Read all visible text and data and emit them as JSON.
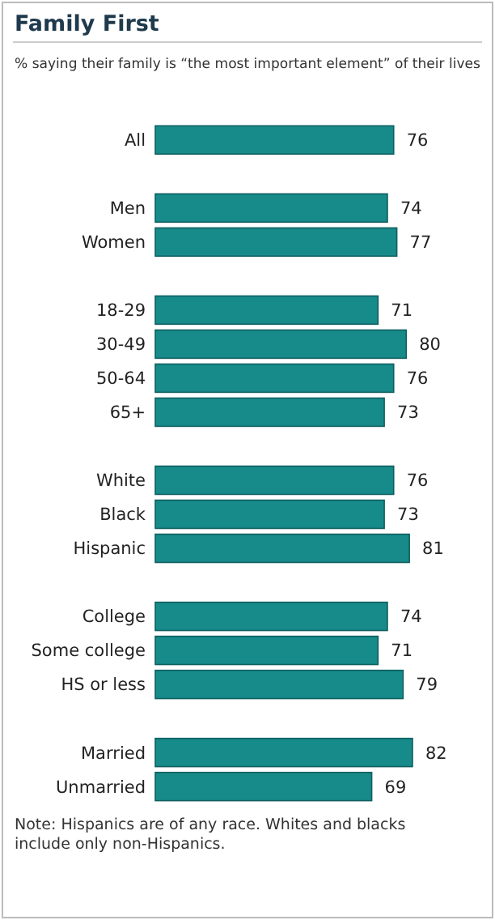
{
  "chart_data": {
    "type": "bar",
    "orientation": "horizontal",
    "title": "Family First",
    "subtitle": "% saying their family is “the most important element” of their lives",
    "categories": [
      "All",
      null,
      "Men",
      "Women",
      null,
      "18-29",
      "30-49",
      "50-64",
      "65+",
      null,
      "White",
      "Black",
      "Hispanic",
      null,
      "College",
      "Some college",
      "HS or less",
      null,
      "Married",
      "Unmarried"
    ],
    "values": [
      76,
      null,
      74,
      77,
      null,
      71,
      80,
      76,
      73,
      null,
      76,
      73,
      81,
      null,
      74,
      71,
      79,
      null,
      82,
      69
    ],
    "color": "#178a8a",
    "data_labels": true,
    "annotations": [
      "Note: Hispanics are of any race. Whites and blacks include only non-Hispanics."
    ]
  }
}
